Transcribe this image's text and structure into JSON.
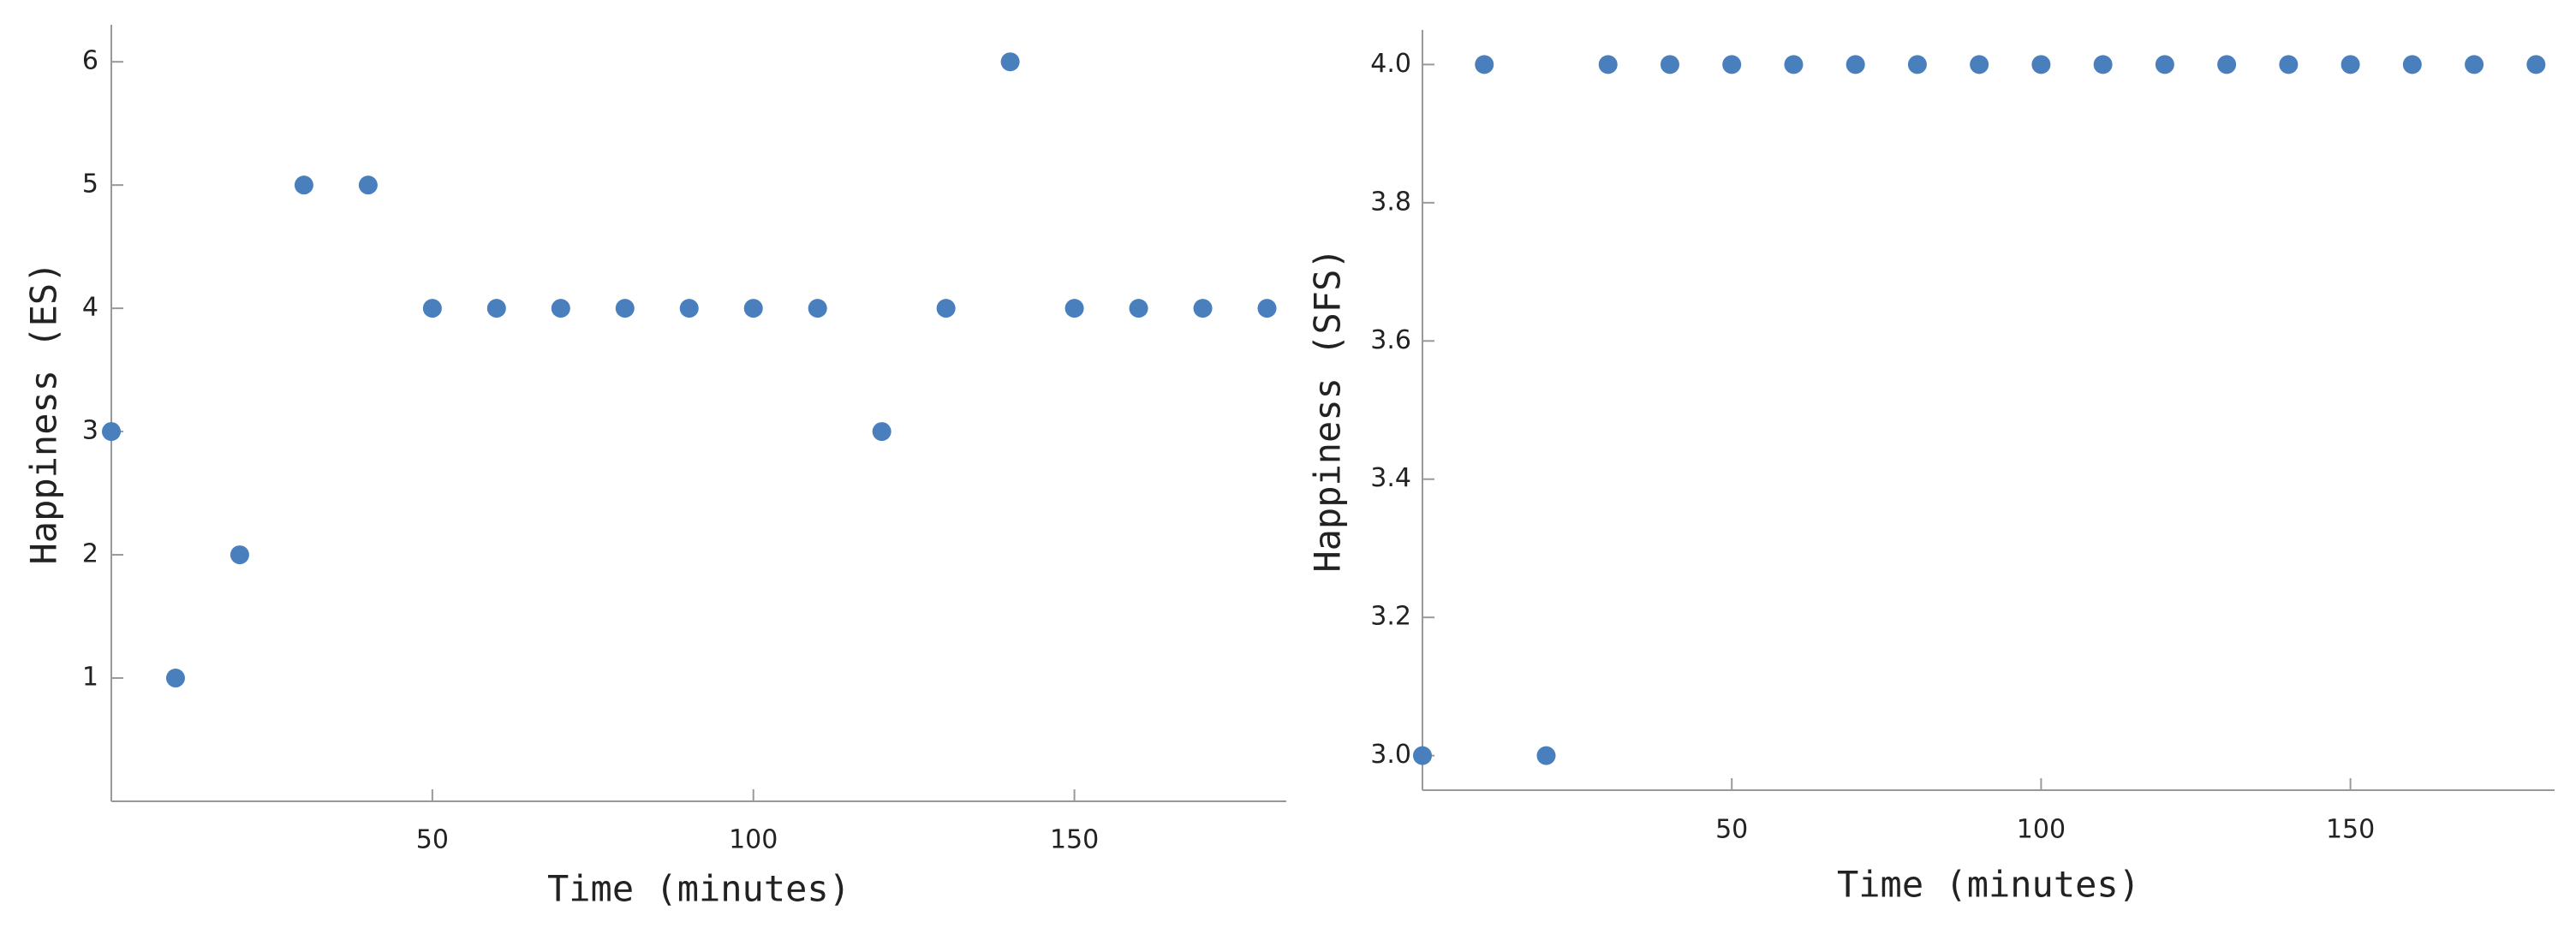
{
  "chart_data": [
    {
      "type": "scatter",
      "x_label": "Time (minutes)",
      "y_label": "Happiness (ES)",
      "color": "#4a7fbd",
      "x": [
        0,
        10,
        20,
        30,
        40,
        50,
        60,
        70,
        80,
        90,
        100,
        110,
        120,
        130,
        140,
        150,
        160,
        170,
        180
      ],
      "values": [
        3,
        1,
        2,
        5,
        5,
        4,
        4,
        4,
        4,
        4,
        4,
        4,
        3,
        4,
        6,
        4,
        4,
        4,
        4
      ],
      "xlim": [
        0,
        183
      ],
      "ylim": [
        0,
        6.3
      ],
      "xticks": [
        50,
        100,
        150
      ],
      "yticks": [
        1,
        2,
        3,
        4,
        5,
        6
      ]
    },
    {
      "type": "scatter",
      "x_label": "Time (minutes)",
      "y_label": "Happiness (SFS)",
      "color": "#4a7fbd",
      "x": [
        0,
        10,
        20,
        30,
        40,
        50,
        60,
        70,
        80,
        90,
        100,
        110,
        120,
        130,
        140,
        150,
        160,
        170,
        180
      ],
      "values": [
        3,
        4,
        3,
        4,
        4,
        4,
        4,
        4,
        4,
        4,
        4,
        4,
        4,
        4,
        4,
        4,
        4,
        4,
        4
      ],
      "xlim": [
        0,
        183
      ],
      "ylim": [
        2.95,
        4.05
      ],
      "xticks": [
        50,
        100,
        150
      ],
      "yticks": [
        {
          "value": 3,
          "label": "3.0"
        },
        3.2,
        3.4,
        3.6,
        3.8,
        {
          "value": 4,
          "label": "4.0"
        }
      ]
    }
  ]
}
